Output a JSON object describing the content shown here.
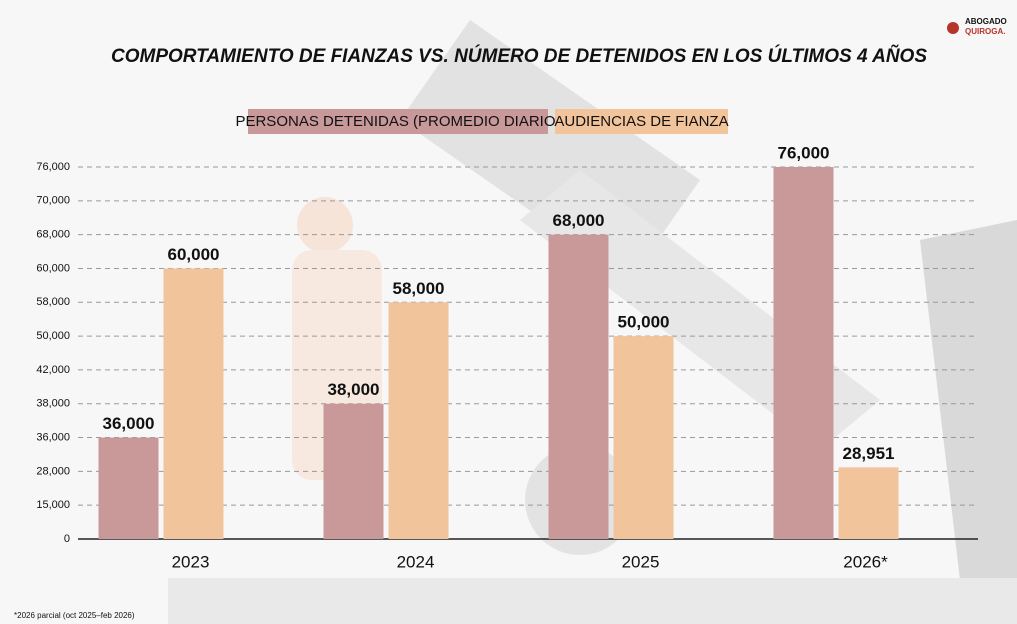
{
  "chart_data": {
    "type": "bar",
    "title": "COMPORTAMIENTO DE FIANZAS VS. NÚMERO DE DETENIDOS EN LOS ÚLTIMOS 4 AÑOS",
    "logo": [
      "ABOGADO",
      "QUIROGA."
    ],
    "footnote": "*2026 parcial (oct 2025–feb 2026)",
    "categories": [
      "2023",
      "2024",
      "2025",
      "2026*"
    ],
    "series": [
      {
        "name": "PERSONAS DETENIDAS (PROMEDIO DIARIO)",
        "color": "#c9999a",
        "values": [
          36000,
          38000,
          68000,
          76000
        ],
        "value_labels": [
          "36,000",
          "38,000",
          "68,000",
          "76,000"
        ]
      },
      {
        "name": "AUDIENCIAS DE FIANZA",
        "color": "#f2c49c",
        "values": [
          60000,
          58000,
          50000,
          28951
        ],
        "value_labels": [
          "60,000",
          "58,000",
          "50,000",
          "28,951"
        ]
      }
    ],
    "ylim": [
      0,
      76000
    ],
    "yticks": [
      0,
      {
        "value": 15000,
        "label": "15,000"
      },
      {
        "value": 28000,
        "label": "28,000"
      },
      {
        "value": 36000,
        "label": "36,000"
      },
      {
        "value": 38000,
        "label": "38,000"
      },
      {
        "value": 42000,
        "label": "42,000"
      },
      {
        "value": 50000,
        "label": "50,000"
      },
      {
        "value": 58000,
        "label": "58,000"
      },
      {
        "value": 60000,
        "label": "60,000"
      },
      {
        "value": 68000,
        "label": "68,000"
      },
      {
        "value": 70000,
        "label": "70,000"
      },
      {
        "value": 76000,
        "label": "76,000"
      }
    ],
    "grid": true
  }
}
